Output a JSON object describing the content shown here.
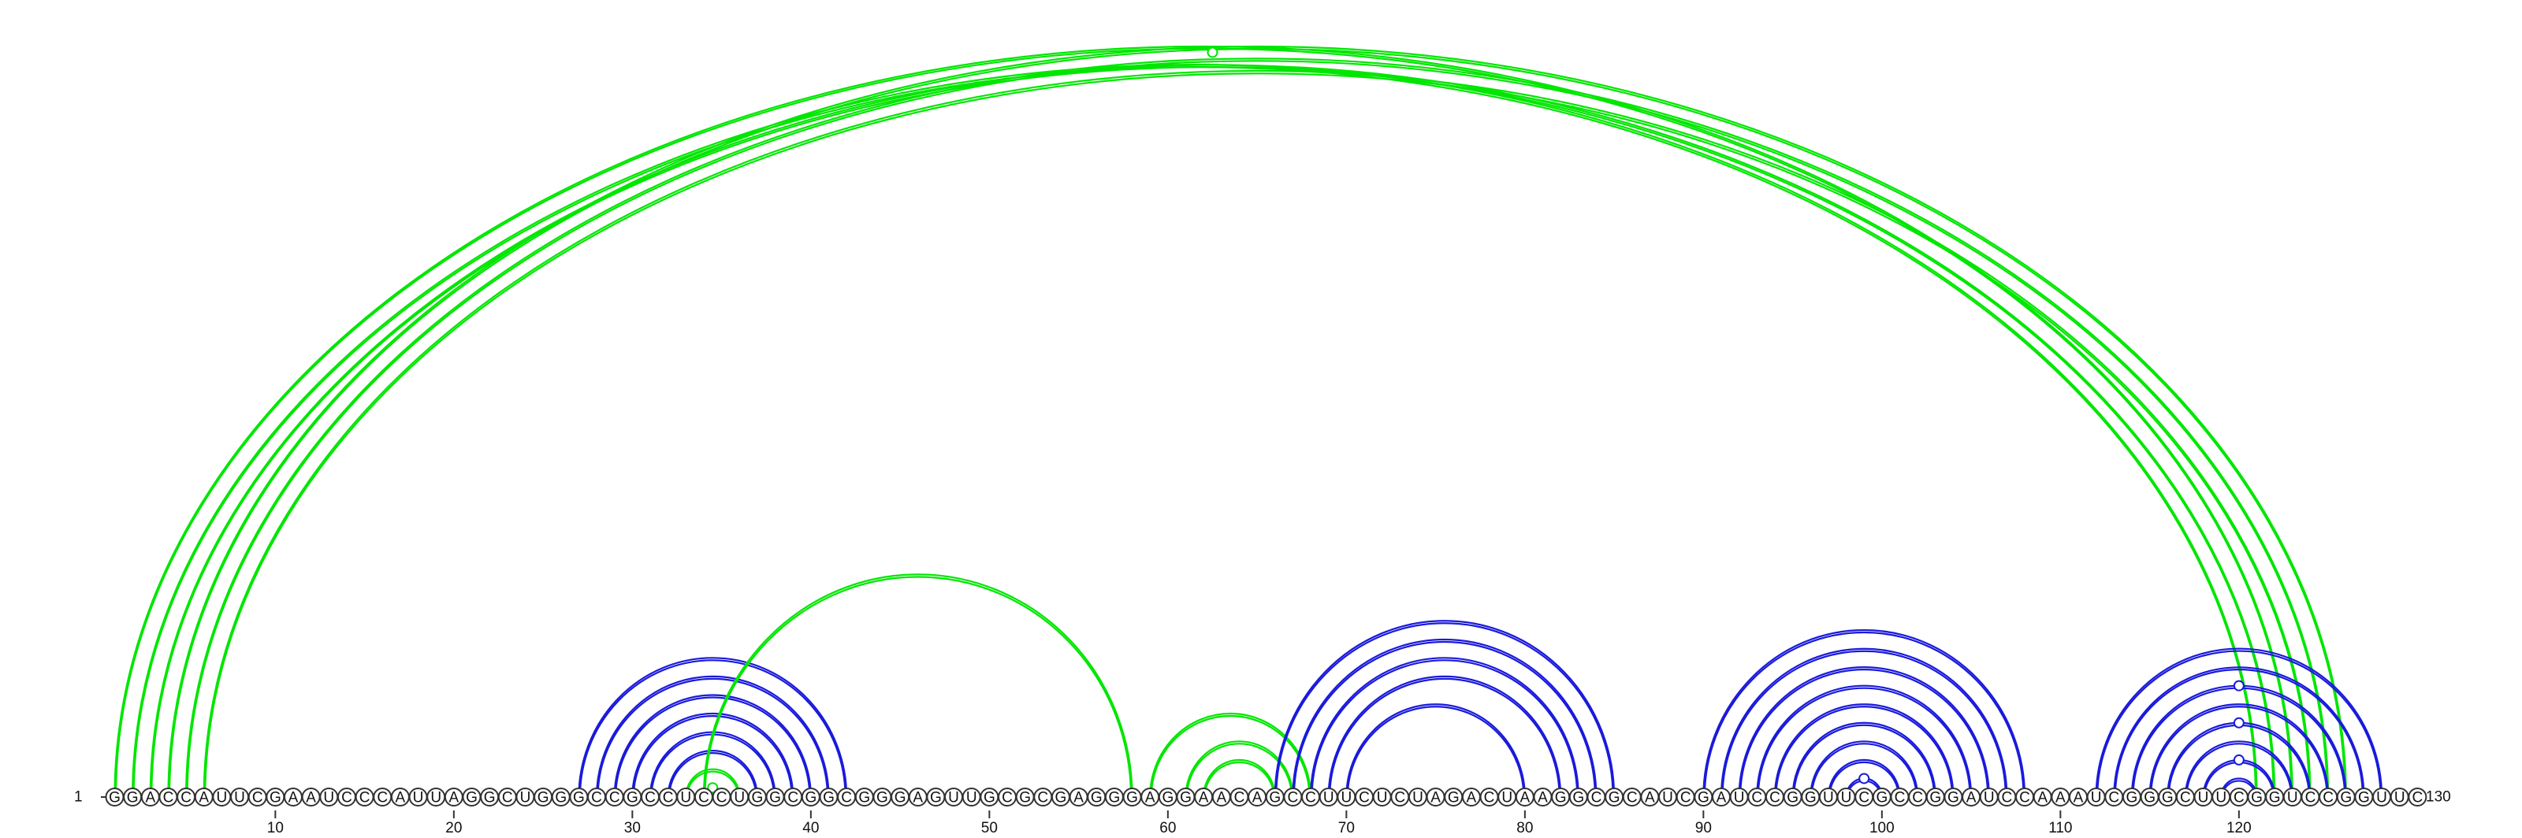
{
  "sequence": "GGACCAUUCGAAUCCCAUUAGGCUGGGCCGCCUCCUGGCGGCGGGAGUUGCGCGAGGGAGGAACAGCCUUCUCUAGACUAAGGCGCAUCGAUCCGGUUCGCCGGAUCCAAAUCGGGCUUCGGUCCGGUUC",
  "start_label": "1",
  "end_label": "130",
  "ticks": [
    "10",
    "20",
    "30",
    "40",
    "50",
    "60",
    "70",
    "80",
    "90",
    "100",
    "110",
    "120"
  ],
  "colors": {
    "green": "#00e600",
    "blue": "#1a1adb",
    "backbone": "#333333"
  },
  "arc_groups": [
    {
      "name": "long-range-helix",
      "color": "green",
      "pairs": [
        [
          1,
          123
        ],
        [
          2,
          121
        ],
        [
          3,
          122
        ],
        [
          4,
          126
        ],
        [
          5,
          125
        ],
        [
          6,
          124
        ]
      ]
    },
    {
      "name": "helix-27-42",
      "color": "blue",
      "pairs": [
        [
          27,
          42
        ],
        [
          28,
          41
        ],
        [
          29,
          40
        ],
        [
          30,
          39
        ],
        [
          31,
          38
        ],
        [
          32,
          37
        ]
      ]
    },
    {
      "name": "pseudoknot-33-36",
      "color": "green",
      "pairs": [
        [
          33,
          36
        ],
        [
          34,
          35
        ]
      ]
    },
    {
      "name": "pseudoknot-34-58",
      "color": "green",
      "pairs": [
        [
          34,
          58
        ]
      ]
    },
    {
      "name": "pseudoknot-59-68",
      "color": "green",
      "pairs": [
        [
          59,
          68
        ],
        [
          61,
          67
        ],
        [
          62,
          66
        ]
      ]
    },
    {
      "name": "helix-66-85",
      "color": "blue",
      "pairs": [
        [
          66,
          85
        ],
        [
          67,
          84
        ],
        [
          68,
          83
        ],
        [
          69,
          82
        ],
        [
          70,
          80
        ]
      ]
    },
    {
      "name": "helix-90-108",
      "color": "blue",
      "pairs": [
        [
          90,
          108
        ],
        [
          91,
          107
        ],
        [
          92,
          106
        ],
        [
          93,
          105
        ],
        [
          94,
          104
        ],
        [
          95,
          103
        ],
        [
          96,
          102
        ],
        [
          97,
          101
        ],
        [
          98,
          100
        ]
      ]
    },
    {
      "name": "helix-112-128",
      "color": "blue",
      "pairs": [
        [
          112,
          128
        ],
        [
          113,
          127
        ],
        [
          114,
          126
        ],
        [
          115,
          125
        ],
        [
          116,
          124
        ],
        [
          117,
          123
        ],
        [
          118,
          122
        ],
        [
          119,
          121
        ]
      ]
    }
  ],
  "markers": [
    {
      "color": "green",
      "at": [
        2,
        123
      ],
      "filled": false
    },
    {
      "color": "green",
      "at": [
        34,
        35
      ],
      "filled": true
    },
    {
      "color": "blue",
      "at": [
        98,
        100
      ],
      "filled": false
    },
    {
      "color": "blue",
      "at": [
        118,
        122
      ],
      "filled": false
    },
    {
      "color": "blue",
      "at": [
        116,
        124
      ],
      "filled": false
    },
    {
      "color": "blue",
      "at": [
        114,
        126
      ],
      "filled": false
    }
  ]
}
